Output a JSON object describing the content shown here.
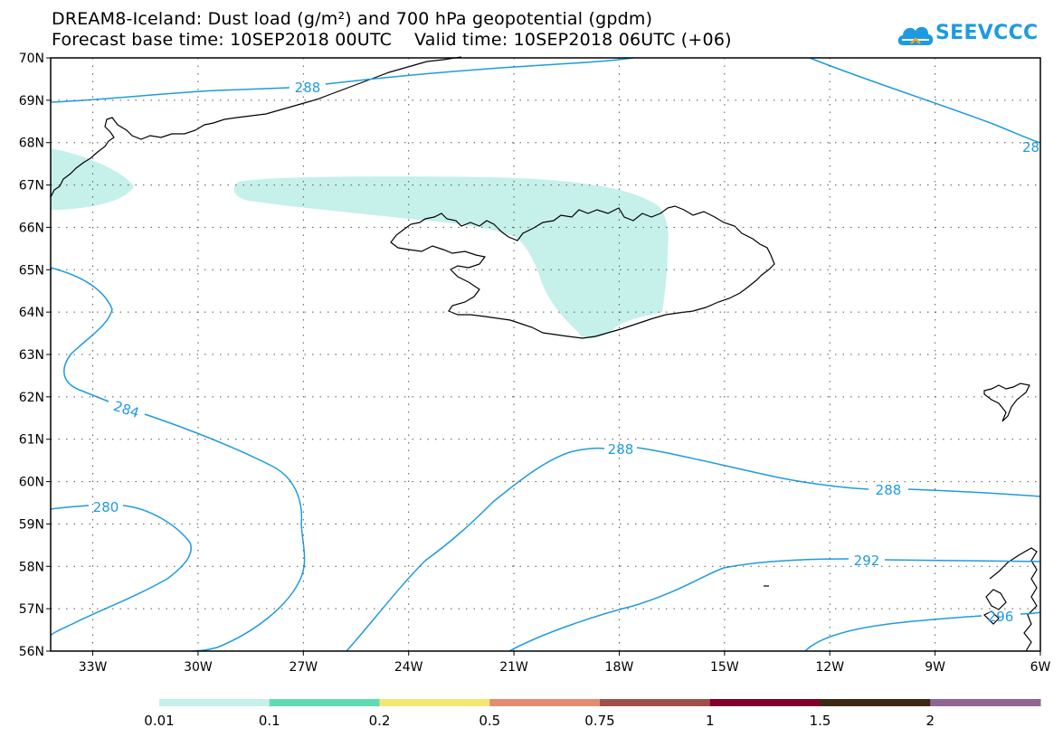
{
  "title": {
    "line1": "DREAM8-Iceland: Dust load (g/m²) and 700 hPa geopotential (gpdm)",
    "line2": "Forecast base time: 10SEP2018 00UTC    Valid time: 10SEP2018 06UTC (+06)"
  },
  "logo": {
    "text": "SEEVCCC",
    "icon": "cloud-icon",
    "color": "#1e9be0"
  },
  "map": {
    "lat_labels": [
      "70N",
      "69N",
      "68N",
      "67N",
      "66N",
      "65N",
      "64N",
      "63N",
      "62N",
      "61N",
      "60N",
      "59N",
      "58N",
      "57N",
      "56N"
    ],
    "lon_labels": [
      "33W",
      "30W",
      "27W",
      "24W",
      "21W",
      "18W",
      "15W",
      "12W",
      "9W",
      "6W"
    ],
    "lat_range": [
      56,
      70
    ],
    "lon_range": [
      -34.2,
      -6
    ],
    "contour_color": "#1e9be0",
    "dust_fill_color": "#c6f0ea",
    "contour_labels": [
      "288",
      "28",
      "284",
      "288",
      "288",
      "280",
      "292",
      "296"
    ]
  },
  "colorbar": {
    "colors": [
      "#c6f0ea",
      "#5fdcb4",
      "#f5e673",
      "#e68c6e",
      "#a0504b",
      "#82002d",
      "#3c2814",
      "#916496"
    ],
    "labels": [
      "0.01",
      "0.1",
      "0.2",
      "0.5",
      "0.75",
      "1",
      "1.5",
      "2"
    ]
  }
}
